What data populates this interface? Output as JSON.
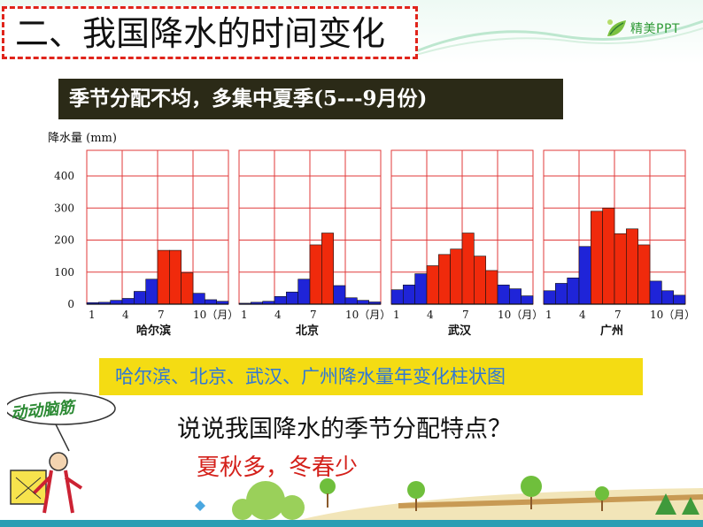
{
  "header": {
    "title": "二、我国降水的时间变化",
    "logo_text": "精美PPT"
  },
  "subtitle": "季节分配不均，多集中夏季(5---9月份)",
  "chart_data": {
    "type": "bar",
    "ylabel": "降水量 (mm)",
    "ylim": [
      0,
      480
    ],
    "yticks": [
      0,
      100,
      200,
      300,
      400
    ],
    "xticks": [
      "1",
      "4",
      "7",
      "10（月）"
    ],
    "series": [
      {
        "name": "哈尔滨",
        "values": [
          5,
          6,
          12,
          18,
          40,
          78,
          168,
          168,
          98,
          34,
          14,
          9
        ],
        "highlight": [
          false,
          false,
          false,
          false,
          false,
          false,
          true,
          true,
          true,
          false,
          false,
          false
        ]
      },
      {
        "name": "北京",
        "values": [
          3,
          6,
          9,
          24,
          38,
          78,
          185,
          222,
          58,
          20,
          12,
          7
        ],
        "highlight": [
          false,
          false,
          false,
          false,
          false,
          false,
          true,
          true,
          false,
          false,
          false,
          false
        ]
      },
      {
        "name": "武汉",
        "values": [
          45,
          60,
          95,
          120,
          155,
          172,
          222,
          150,
          105,
          60,
          48,
          26
        ],
        "highlight": [
          false,
          false,
          false,
          true,
          true,
          true,
          true,
          true,
          true,
          false,
          false,
          false
        ]
      },
      {
        "name": "广州",
        "values": [
          42,
          65,
          82,
          180,
          290,
          300,
          220,
          235,
          185,
          72,
          42,
          28
        ],
        "highlight": [
          false,
          false,
          false,
          false,
          true,
          true,
          true,
          true,
          true,
          false,
          false,
          false
        ]
      }
    ],
    "colors": {
      "highlight": "#f02a0c",
      "normal": "#1f24d8",
      "grid": "#e03a3a"
    }
  },
  "caption": "哈尔滨、北京、武汉、广州降水量年变化柱状图",
  "thinking": {
    "label": "动动脑筋",
    "question": "说说我国降水的季节分配特点？",
    "answer": "夏秋多，冬春少"
  },
  "colors": {
    "title_border": "#e0241b",
    "subtitle_bg": "#2b2a17",
    "caption_bg": "#f4dc13",
    "caption_text": "#2f77d6",
    "answer_text": "#d4201a",
    "accent_green": "#2e9a36"
  }
}
